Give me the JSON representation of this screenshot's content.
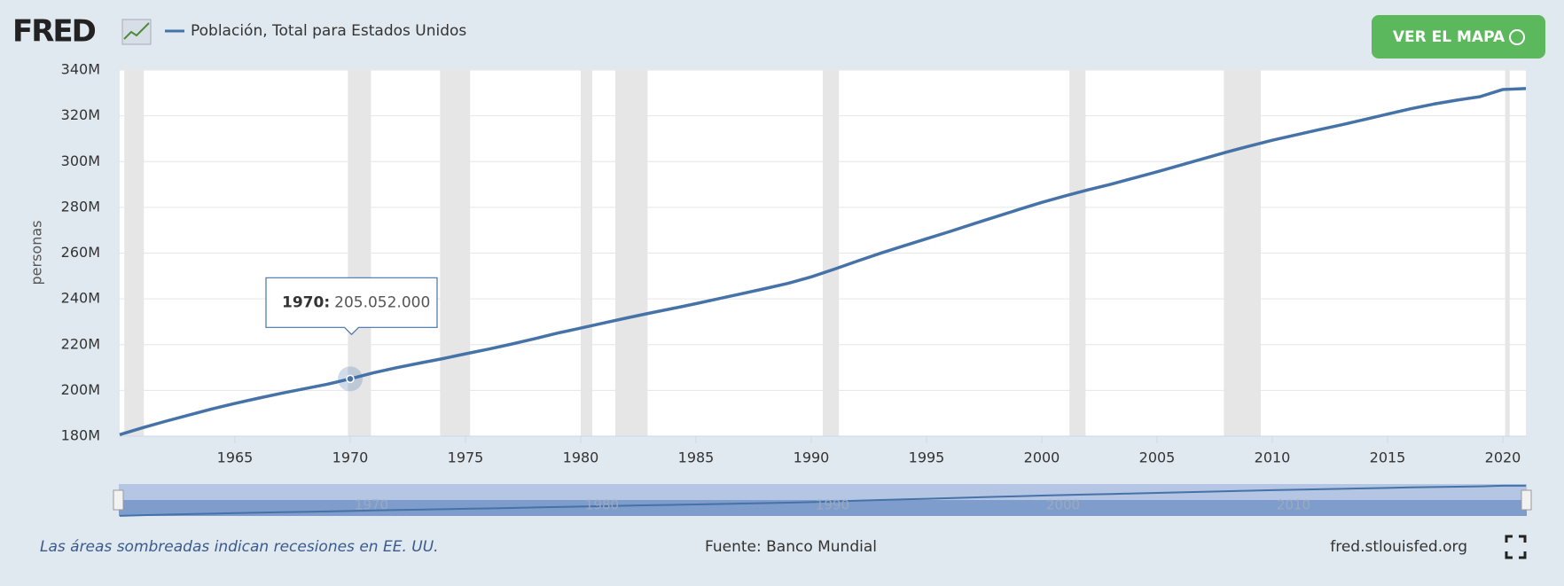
{
  "header": {
    "logo": "FRED",
    "button": "VER EL MAPA"
  },
  "chart_data": {
    "type": "line",
    "y_label": "personas",
    "x": [
      1960,
      1961,
      1962,
      1963,
      1964,
      1965,
      1966,
      1967,
      1968,
      1969,
      1970,
      1971,
      1972,
      1973,
      1974,
      1975,
      1976,
      1977,
      1978,
      1979,
      1980,
      1981,
      1982,
      1983,
      1984,
      1985,
      1986,
      1987,
      1988,
      1989,
      1990,
      1991,
      1992,
      1993,
      1994,
      1995,
      1996,
      1997,
      1998,
      1999,
      2000,
      2001,
      2002,
      2003,
      2004,
      2005,
      2006,
      2007,
      2008,
      2009,
      2010,
      2011,
      2012,
      2013,
      2014,
      2015,
      2016,
      2017,
      2018,
      2019,
      2020,
      2021
    ],
    "series": [
      {
        "name": "Población, Total para Estados Unidos",
        "color": "#4572a7",
        "values": [
          180671000,
          183691000,
          186538000,
          189242000,
          191889000,
          194303000,
          196560000,
          198712000,
          200706000,
          202677000,
          205052000,
          207661000,
          209896000,
          211909000,
          213854000,
          215973000,
          218035000,
          220239000,
          222585000,
          225055000,
          227225000,
          229466000,
          231664000,
          233792000,
          235825000,
          237924000,
          240133000,
          242289000,
          244499000,
          246819000,
          249623000,
          252981000,
          256514000,
          259919000,
          263126000,
          266278000,
          269394000,
          272657000,
          275854000,
          279040000,
          282162411,
          284968955,
          287625193,
          290107933,
          292805298,
          295516599,
          298379912,
          301231207,
          304093966,
          306771529,
          309327143,
          311583481,
          313877662,
          316059947,
          318386329,
          320738994,
          323071755,
          325122128,
          326838199,
          328329953,
          331501080,
          331893745
        ]
      }
    ],
    "xlim": [
      1960,
      2021
    ],
    "xticks": [
      1965,
      1970,
      1975,
      1980,
      1985,
      1990,
      1995,
      2000,
      2005,
      2010,
      2015,
      2020
    ],
    "ylim": [
      180000000,
      340000000
    ],
    "yticks": [
      {
        "value": 180000000,
        "label": "180M"
      },
      {
        "value": 200000000,
        "label": "200M"
      },
      {
        "value": 220000000,
        "label": "220M"
      },
      {
        "value": 240000000,
        "label": "240M"
      },
      {
        "value": 260000000,
        "label": "260M"
      },
      {
        "value": 280000000,
        "label": "280M"
      },
      {
        "value": 300000000,
        "label": "300M"
      },
      {
        "value": 320000000,
        "label": "320M"
      },
      {
        "value": 340000000,
        "label": "340M"
      }
    ],
    "grid": true,
    "recessions": [
      [
        1960.2,
        1961.05
      ],
      [
        1969.9,
        1970.9
      ],
      [
        1973.9,
        1975.2
      ],
      [
        1980.0,
        1980.5
      ],
      [
        1981.5,
        1982.9
      ],
      [
        1990.5,
        1991.2
      ],
      [
        2001.2,
        2001.9
      ],
      [
        2007.9,
        2009.5
      ],
      [
        2020.1,
        2020.3
      ]
    ],
    "recession_color": "#e6e6e6",
    "tooltip": {
      "index": 10,
      "label": "1970:",
      "value": 205052000,
      "value_label": "205.052.000"
    },
    "navigator_ticks": [
      1970,
      1980,
      1990,
      2000,
      2010
    ]
  },
  "footer": {
    "note": "Las áreas sombreadas indican recesiones en EE. UU.",
    "source": "Fuente: Banco Mundial",
    "site": "fred.stlouisfed.org"
  }
}
